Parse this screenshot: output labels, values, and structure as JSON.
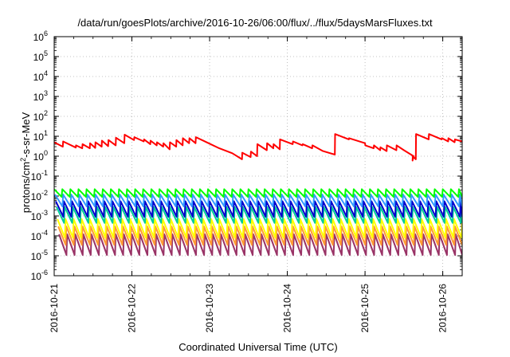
{
  "chart_data": {
    "type": "line",
    "title": "/data/run/goesPlots/archive/2016-10-26/06:00/flux/../flux/5daysMarsFluxes.txt",
    "xlabel": "Coordinated Universal Time (UTC)",
    "ylabel": {
      "prefix": "protons/cm",
      "sup": "2",
      "suffix": "-s-sr-MeV"
    },
    "x_range": [
      "2016-10-21T00:00",
      "2016-10-26T06:00"
    ],
    "x_ticks": [
      "2016-10-21",
      "2016-10-22",
      "2016-10-23",
      "2016-10-24",
      "2016-10-25",
      "2016-10-26"
    ],
    "y_scale": "log",
    "ylim": [
      1e-06,
      1000000.0
    ],
    "y_ticks": [
      {
        "base": "10",
        "exp": "-6"
      },
      {
        "base": "10",
        "exp": "-5"
      },
      {
        "base": "10",
        "exp": "-4"
      },
      {
        "base": "10",
        "exp": "-3"
      },
      {
        "base": "10",
        "exp": "-2"
      },
      {
        "base": "10",
        "exp": "-1"
      },
      {
        "base": "10",
        "exp": "0"
      },
      {
        "base": "10",
        "exp": "1"
      },
      {
        "base": "10",
        "exp": "2"
      },
      {
        "base": "10",
        "exp": "3"
      },
      {
        "base": "10",
        "exp": "4"
      },
      {
        "base": "10",
        "exp": "5"
      },
      {
        "base": "10",
        "exp": "6"
      }
    ],
    "grid": true,
    "legend": "none",
    "series": [
      {
        "color": "#ff0000",
        "points": [
          [
            "2016-10-21T00:00",
            5
          ],
          [
            "2016-10-21T02:40",
            3
          ],
          [
            "2016-10-21T02:45",
            5.5
          ],
          [
            "2016-10-21T06:40",
            2.7
          ],
          [
            "2016-10-21T06:45",
            3.5
          ],
          [
            "2016-10-21T08:40",
            2.5
          ],
          [
            "2016-10-21T08:45",
            4
          ],
          [
            "2016-10-21T11:00",
            2.5
          ],
          [
            "2016-10-21T11:05",
            4.5
          ],
          [
            "2016-10-21T12:40",
            2.6
          ],
          [
            "2016-10-21T12:45",
            5
          ],
          [
            "2016-10-21T14:40",
            3
          ],
          [
            "2016-10-21T14:45",
            6
          ],
          [
            "2016-10-21T16:40",
            3.2
          ],
          [
            "2016-10-21T16:45",
            6.5
          ],
          [
            "2016-10-21T19:00",
            3.5
          ],
          [
            "2016-10-21T19:05",
            8.5
          ],
          [
            "2016-10-21T21:40",
            4.5
          ],
          [
            "2016-10-21T21:45",
            12
          ],
          [
            "2016-10-22T00:40",
            6.5
          ],
          [
            "2016-10-22T00:45",
            9
          ],
          [
            "2016-10-22T03:40",
            5.5
          ],
          [
            "2016-10-22T03:45",
            7
          ],
          [
            "2016-10-22T05:40",
            4
          ],
          [
            "2016-10-22T05:45",
            6
          ],
          [
            "2016-10-22T07:40",
            3.5
          ],
          [
            "2016-10-22T07:45",
            5
          ],
          [
            "2016-10-22T09:40",
            3
          ],
          [
            "2016-10-22T09:45",
            4.5
          ],
          [
            "2016-10-22T11:40",
            2.2
          ],
          [
            "2016-10-22T11:45",
            5
          ],
          [
            "2016-10-22T13:40",
            3
          ],
          [
            "2016-10-22T13:45",
            6.5
          ],
          [
            "2016-10-22T15:40",
            3.5
          ],
          [
            "2016-10-22T15:45",
            8
          ],
          [
            "2016-10-22T17:40",
            4.5
          ],
          [
            "2016-10-22T17:45",
            8
          ],
          [
            "2016-10-22T19:40",
            4.5
          ],
          [
            "2016-10-22T19:45",
            9
          ],
          [
            "2016-10-22T23:40",
            4.5
          ],
          [
            "2016-10-23T03:00",
            2.5
          ],
          [
            "2016-10-23T07:00",
            1.4
          ],
          [
            "2016-10-23T10:00",
            0.7
          ],
          [
            "2016-10-23T10:05",
            1.5
          ],
          [
            "2016-10-23T12:40",
            0.9
          ],
          [
            "2016-10-23T12:45",
            1.7
          ],
          [
            "2016-10-23T14:40",
            1
          ],
          [
            "2016-10-23T14:45",
            4
          ],
          [
            "2016-10-23T17:40",
            2
          ],
          [
            "2016-10-23T17:45",
            4.5
          ],
          [
            "2016-10-23T19:40",
            2.5
          ],
          [
            "2016-10-23T19:45",
            4
          ],
          [
            "2016-10-23T21:40",
            2.2
          ],
          [
            "2016-10-23T21:45",
            7
          ],
          [
            "2016-10-24T01:40",
            4
          ],
          [
            "2016-10-24T01:45",
            5.5
          ],
          [
            "2016-10-24T04:40",
            3.5
          ],
          [
            "2016-10-24T04:45",
            4
          ],
          [
            "2016-10-24T07:40",
            2.5
          ],
          [
            "2016-10-24T07:45",
            3.5
          ],
          [
            "2016-10-24T11:00",
            1.8
          ],
          [
            "2016-10-24T14:40",
            1.2
          ],
          [
            "2016-10-24T14:45",
            13
          ],
          [
            "2016-10-24T19:00",
            7
          ],
          [
            "2016-10-24T19:05",
            8
          ],
          [
            "2016-10-25T00:00",
            4.5
          ],
          [
            "2016-10-25T00:05",
            3.5
          ],
          [
            "2016-10-25T02:40",
            2.5
          ],
          [
            "2016-10-25T02:45",
            3.5
          ],
          [
            "2016-10-25T04:40",
            2
          ],
          [
            "2016-10-25T04:45",
            2.8
          ],
          [
            "2016-10-25T06:40",
            1.8
          ],
          [
            "2016-10-25T06:45",
            3.5
          ],
          [
            "2016-10-25T09:40",
            2
          ],
          [
            "2016-10-25T09:45",
            3.5
          ],
          [
            "2016-10-25T12:00",
            2
          ],
          [
            "2016-10-25T15:00",
            1
          ],
          [
            "2016-10-25T14:40",
            0.6
          ],
          [
            "2016-10-25T14:45",
            1
          ],
          [
            "2016-10-25T15:40",
            0.7
          ],
          [
            "2016-10-25T15:45",
            13
          ],
          [
            "2016-10-25T19:40",
            7
          ],
          [
            "2016-10-25T19:45",
            13
          ],
          [
            "2016-10-25T23:40",
            7
          ],
          [
            "2016-10-25T23:45",
            8
          ],
          [
            "2016-10-26T01:40",
            5.5
          ],
          [
            "2016-10-26T01:45",
            8
          ],
          [
            "2016-10-26T03:40",
            5
          ],
          [
            "2016-10-26T03:45",
            7
          ],
          [
            "2016-10-26T06:00",
            5.5
          ]
        ]
      },
      {
        "color": "#00ff00",
        "sawtooth": {
          "start": "2016-10-21T00:00",
          "end": "2016-10-26T06:00",
          "period_hours": 2.5,
          "high": 0.022,
          "low": 0.009
        }
      },
      {
        "color": "#3399ff",
        "sawtooth": {
          "start": "2016-10-21T00:15",
          "end": "2016-10-26T06:00",
          "period_hours": 2.5,
          "high": 0.012,
          "low": 0.003
        }
      },
      {
        "color": "#0000cc",
        "sawtooth": {
          "start": "2016-10-21T00:30",
          "end": "2016-10-26T06:00",
          "period_hours": 2.5,
          "high": 0.0055,
          "low": 0.0009
        }
      },
      {
        "color": "#00cc99",
        "sawtooth": {
          "start": "2016-10-21T00:45",
          "end": "2016-10-26T06:00",
          "period_hours": 2.5,
          "high": 0.0028,
          "low": 0.00045
        }
      },
      {
        "color": "#ffff00",
        "sawtooth": {
          "start": "2016-10-21T01:00",
          "end": "2016-10-26T06:00",
          "period_hours": 2.5,
          "high": 0.0007,
          "low": 8e-05
        }
      },
      {
        "color": "#ff9933",
        "sawtooth": {
          "start": "2016-10-21T01:15",
          "end": "2016-10-26T06:00",
          "period_hours": 2.5,
          "high": 0.0003,
          "low": 3.5e-05
        }
      },
      {
        "color": "#993366",
        "sawtooth": {
          "start": "2016-10-21T01:30",
          "end": "2016-10-26T06:00",
          "period_hours": 2.5,
          "high": 0.00012,
          "low": 1.1e-05
        }
      }
    ]
  }
}
